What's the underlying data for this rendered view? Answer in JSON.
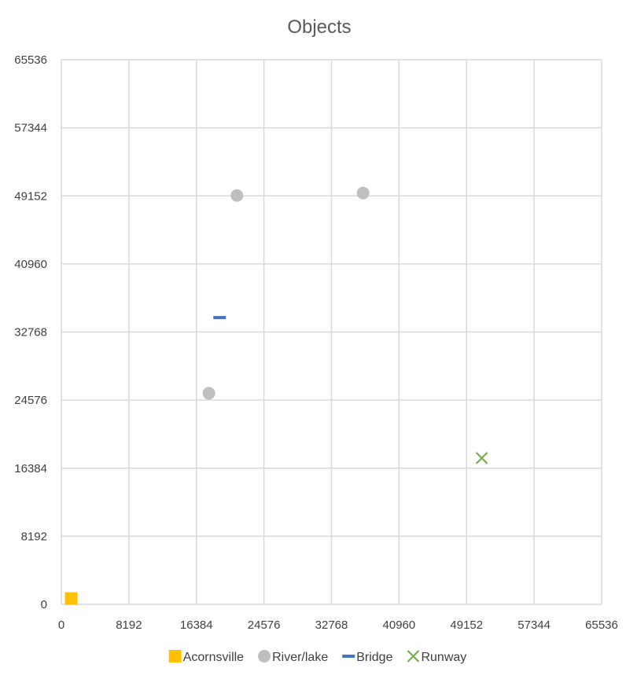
{
  "chart_data": {
    "type": "scatter",
    "title": "Objects",
    "xlabel": "",
    "ylabel": "",
    "xlim": [
      0,
      65536
    ],
    "ylim": [
      0,
      65536
    ],
    "xticks": [
      0,
      8192,
      16384,
      24576,
      32768,
      40960,
      49152,
      57344,
      65536
    ],
    "yticks": [
      0,
      8192,
      16384,
      24576,
      32768,
      40960,
      49152,
      57344,
      65536
    ],
    "grid": true,
    "legend_position": "bottom",
    "series": [
      {
        "name": "Acornsville",
        "marker": "square",
        "color": "#FFC000",
        "points": [
          [
            1200,
            700
          ]
        ]
      },
      {
        "name": "River/lake",
        "marker": "circle",
        "color": "#BFBFBF",
        "points": [
          [
            21300,
            49200
          ],
          [
            36600,
            49500
          ],
          [
            17900,
            25400
          ]
        ]
      },
      {
        "name": "Bridge",
        "marker": "dash",
        "color": "#4472C4",
        "points": [
          [
            19200,
            34500
          ]
        ]
      },
      {
        "name": "Runway",
        "marker": "x",
        "color": "#70AD47",
        "points": [
          [
            51000,
            17600
          ]
        ]
      }
    ]
  }
}
